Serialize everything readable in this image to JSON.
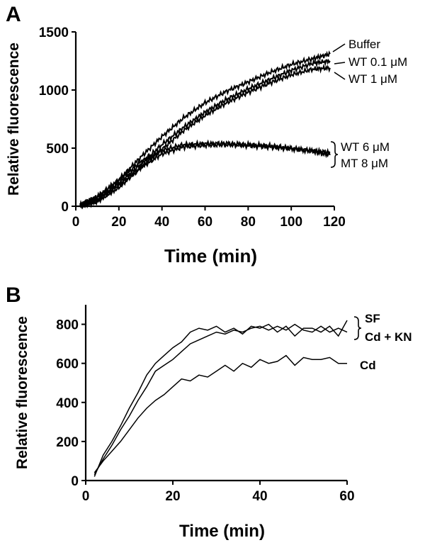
{
  "chart_data": [
    {
      "panel": "A",
      "type": "line",
      "xlabel": "Time (min)",
      "ylabel": "Relative fluorescence",
      "xlim": [
        0,
        120
      ],
      "ylim": [
        0,
        1500
      ],
      "xticks": [
        "0",
        "20",
        "40",
        "60",
        "80",
        "100",
        "120"
      ],
      "yticks": [
        "0",
        "500",
        "1000",
        "1500"
      ],
      "grid": false,
      "annotations": [
        "Buffer",
        "WT 0.1 μM",
        "WT 1 μM",
        "WT 6 μM",
        "MT 8 μM"
      ],
      "series": [
        {
          "name": "Buffer",
          "x": [
            2,
            10,
            20,
            30,
            40,
            50,
            60,
            70,
            80,
            90,
            100,
            110,
            118
          ],
          "y": [
            10,
            80,
            230,
            420,
            600,
            760,
            890,
            990,
            1070,
            1150,
            1220,
            1270,
            1310
          ]
        },
        {
          "name": "WT 0.1 μM",
          "x": [
            2,
            10,
            20,
            30,
            40,
            50,
            60,
            70,
            80,
            90,
            100,
            110,
            118
          ],
          "y": [
            5,
            60,
            200,
            360,
            530,
            680,
            810,
            920,
            1010,
            1090,
            1170,
            1230,
            1250
          ]
        },
        {
          "name": "WT 1 μM",
          "x": [
            2,
            10,
            20,
            30,
            40,
            50,
            60,
            70,
            80,
            90,
            100,
            110,
            118
          ],
          "y": [
            0,
            40,
            160,
            330,
            490,
            650,
            780,
            890,
            980,
            1060,
            1130,
            1180,
            1190
          ]
        },
        {
          "name": "WT 6 μM",
          "x": [
            2,
            10,
            20,
            30,
            40,
            50,
            60,
            70,
            80,
            90,
            100,
            110,
            118
          ],
          "y": [
            10,
            80,
            220,
            380,
            480,
            530,
            540,
            540,
            530,
            520,
            500,
            480,
            460
          ]
        },
        {
          "name": "MT 8 μM",
          "x": [
            2,
            10,
            20,
            30,
            40,
            50,
            60,
            70,
            80,
            90,
            100,
            110,
            118
          ],
          "y": [
            0,
            50,
            180,
            330,
            450,
            510,
            525,
            530,
            520,
            510,
            495,
            470,
            440
          ]
        }
      ]
    },
    {
      "panel": "B",
      "type": "line",
      "xlabel": "Time (min)",
      "ylabel": "Relative fluorescence",
      "xlim": [
        0,
        60
      ],
      "ylim": [
        0,
        900
      ],
      "xticks": [
        "0",
        "20",
        "40",
        "60"
      ],
      "yticks": [
        "0",
        "200",
        "400",
        "600",
        "800"
      ],
      "grid": false,
      "annotations": [
        "SF",
        "Cd + KN",
        "Cd"
      ],
      "series": [
        {
          "name": "SF",
          "x": [
            2,
            4,
            6,
            8,
            10,
            12,
            14,
            16,
            18,
            20,
            22,
            24,
            26,
            28,
            30,
            32,
            34,
            36,
            38,
            40,
            42,
            44,
            46,
            48,
            50,
            52,
            54,
            56,
            58,
            60
          ],
          "y": [
            20,
            130,
            200,
            280,
            370,
            450,
            540,
            600,
            640,
            680,
            710,
            760,
            780,
            770,
            790,
            760,
            780,
            750,
            790,
            780,
            800,
            760,
            790,
            740,
            780,
            780,
            760,
            790,
            740,
            820
          ]
        },
        {
          "name": "Cd + KN",
          "x": [
            2,
            4,
            6,
            8,
            10,
            12,
            14,
            16,
            18,
            20,
            22,
            24,
            26,
            28,
            30,
            32,
            34,
            36,
            38,
            40,
            42,
            44,
            46,
            48,
            50,
            52,
            54,
            56,
            58,
            60
          ],
          "y": [
            30,
            110,
            180,
            260,
            330,
            410,
            480,
            560,
            590,
            620,
            660,
            700,
            720,
            740,
            760,
            750,
            770,
            760,
            780,
            790,
            770,
            790,
            770,
            800,
            770,
            760,
            790,
            760,
            780,
            760
          ]
        },
        {
          "name": "Cd",
          "x": [
            2,
            4,
            6,
            8,
            10,
            12,
            14,
            16,
            18,
            20,
            22,
            24,
            26,
            28,
            30,
            32,
            34,
            36,
            38,
            40,
            42,
            44,
            46,
            48,
            50,
            52,
            54,
            56,
            58,
            60
          ],
          "y": [
            40,
            100,
            150,
            200,
            260,
            320,
            370,
            410,
            440,
            480,
            520,
            510,
            540,
            530,
            560,
            590,
            560,
            600,
            580,
            620,
            600,
            610,
            640,
            590,
            630,
            620,
            620,
            630,
            600,
            600
          ]
        }
      ]
    }
  ]
}
